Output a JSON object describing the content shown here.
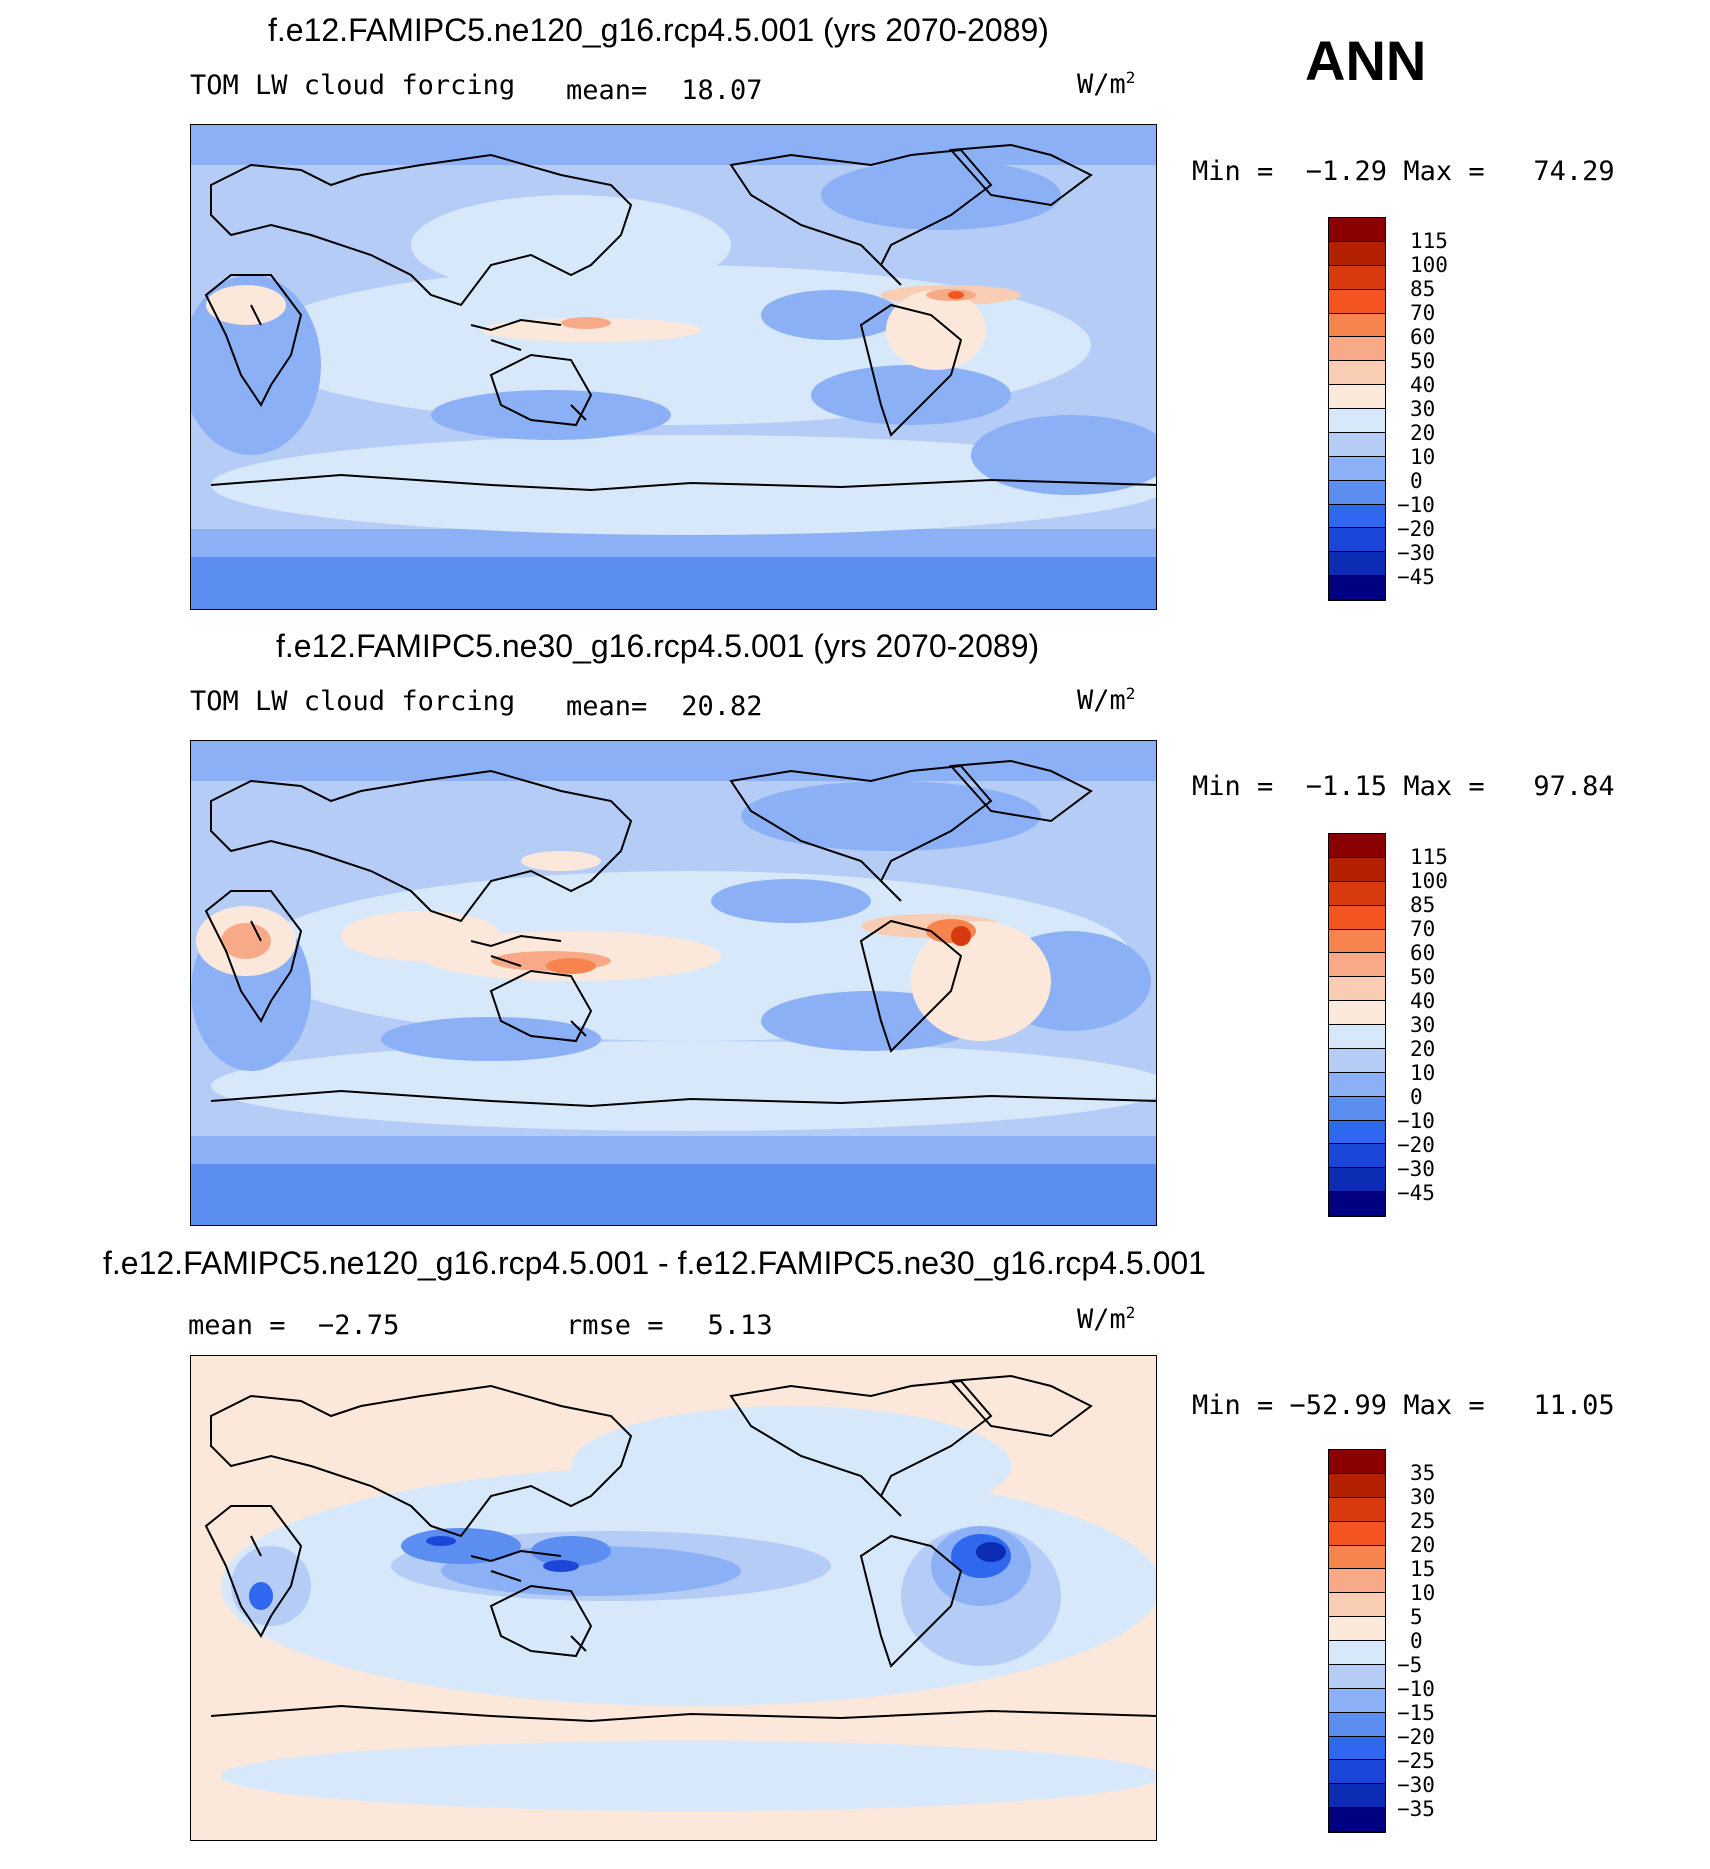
{
  "season": "ANN",
  "panels": [
    {
      "title": "f.e12.FAMIPC5.ne120_g16.rcp4.5.001 (yrs 2070-2089)",
      "left_label": "TOM LW cloud forcing",
      "stat_label": "mean=",
      "stat_value": "18.07",
      "units": "W/m",
      "units_sup": "2",
      "minmax": "Min =  −1.29 Max =   74.29",
      "levels": [
        "115",
        "100",
        "85",
        "70",
        "60",
        "50",
        "40",
        "30",
        "20",
        "10",
        "0",
        "−10",
        "−20",
        "−30",
        "−45"
      ],
      "colors": [
        "#8b0000",
        "#b22000",
        "#d83a0f",
        "#f4541f",
        "#f7834e",
        "#f8aa88",
        "#f8cdb4",
        "#fce8db",
        "#d6e8fa",
        "#b4ccf6",
        "#8cb0f5",
        "#5c8ef1",
        "#2f68ee",
        "#1c46d8",
        "#0c2db3",
        "#000080"
      ]
    },
    {
      "title": "f.e12.FAMIPC5.ne30_g16.rcp4.5.001 (yrs 2070-2089)",
      "left_label": "TOM LW cloud forcing",
      "stat_label": "mean=",
      "stat_value": "20.82",
      "units": "W/m",
      "units_sup": "2",
      "minmax": "Min =  −1.15 Max =   97.84",
      "levels": [
        "115",
        "100",
        "85",
        "70",
        "60",
        "50",
        "40",
        "30",
        "20",
        "10",
        "0",
        "−10",
        "−20",
        "−30",
        "−45"
      ],
      "colors": [
        "#8b0000",
        "#b22000",
        "#d83a0f",
        "#f4541f",
        "#f7834e",
        "#f8aa88",
        "#f8cdb4",
        "#fce8db",
        "#d6e8fa",
        "#b4ccf6",
        "#8cb0f5",
        "#5c8ef1",
        "#2f68ee",
        "#1c46d8",
        "#0c2db3",
        "#000080"
      ]
    },
    {
      "title": "f.e12.FAMIPC5.ne120_g16.rcp4.5.001 - f.e12.FAMIPC5.ne30_g16.rcp4.5.001",
      "left_label": "mean =  −2.75",
      "stat_label": "rmse =",
      "stat_value": "5.13",
      "units": "W/m",
      "units_sup": "2",
      "minmax": "Min = −52.99 Max =   11.05",
      "levels": [
        "35",
        "30",
        "25",
        "20",
        "15",
        "10",
        "5",
        "0",
        "−5",
        "−10",
        "−15",
        "−20",
        "−25",
        "−30",
        "−35"
      ],
      "colors": [
        "#8b0000",
        "#b22000",
        "#d83a0f",
        "#f4541f",
        "#f7834e",
        "#f8aa88",
        "#f8cdb4",
        "#fce8db",
        "#d6e8fa",
        "#b4ccf6",
        "#8cb0f5",
        "#5c8ef1",
        "#2f68ee",
        "#1c46d8",
        "#0c2db3",
        "#000080"
      ]
    }
  ]
}
